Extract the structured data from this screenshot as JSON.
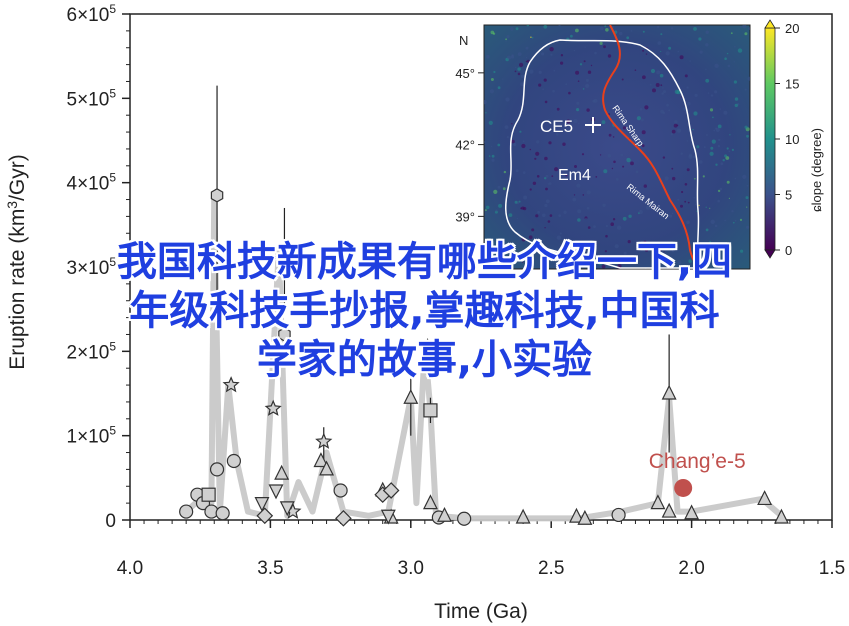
{
  "chart_data": {
    "type": "scatter",
    "xlabel": "Time (Ga)",
    "ylabel": "Eruption rate (km3/Gyr)",
    "xlim": [
      4.0,
      1.5
    ],
    "ylim": [
      0,
      600000
    ],
    "x_ticks": [
      "4.0",
      "3.5",
      "3.0",
      "2.5",
      "2.0",
      "1.5"
    ],
    "y_ticks": [
      "0",
      "1×10⁵",
      "2×10⁵",
      "3×10⁵",
      "4×10⁵",
      "5×10⁵",
      "6×10⁵"
    ],
    "y_tick_mantissa": "×10",
    "y_tick_exponent": "5",
    "ylabel_parts": {
      "main": "Eruption rate (km",
      "sup": "3",
      "end": "/Gyr)"
    },
    "trend": {
      "color": "#c8c8c8",
      "points": [
        [
          3.8,
          10000
        ],
        [
          3.75,
          25000
        ],
        [
          3.71,
          20000
        ],
        [
          3.7,
          385000
        ],
        [
          3.68,
          10000
        ],
        [
          3.65,
          160000
        ],
        [
          3.62,
          70000
        ],
        [
          3.58,
          10000
        ],
        [
          3.52,
          5000
        ],
        [
          3.47,
          320000
        ],
        [
          3.44,
          5000
        ],
        [
          3.4,
          45000
        ],
        [
          3.35,
          10000
        ],
        [
          3.3,
          80000
        ],
        [
          3.24,
          10000
        ],
        [
          3.15,
          5000
        ],
        [
          3.08,
          10000
        ],
        [
          3.0,
          145000
        ],
        [
          2.98,
          20000
        ],
        [
          2.95,
          205000
        ],
        [
          2.93,
          130000
        ],
        [
          2.91,
          5000
        ],
        [
          2.8,
          2000
        ],
        [
          2.6,
          2000
        ],
        [
          2.4,
          2000
        ],
        [
          2.25,
          10000
        ],
        [
          2.12,
          20000
        ],
        [
          2.08,
          145000
        ],
        [
          2.05,
          10000
        ],
        [
          2.0,
          10000
        ],
        [
          1.75,
          25000
        ],
        [
          1.68,
          5000
        ]
      ]
    },
    "points": [
      {
        "marker": "circle",
        "x": 3.8,
        "y": 10000
      },
      {
        "marker": "circle",
        "x": 3.76,
        "y": 30000
      },
      {
        "marker": "circle",
        "x": 3.74,
        "y": 20000
      },
      {
        "marker": "circle",
        "x": 3.71,
        "y": 10000
      },
      {
        "marker": "circle",
        "x": 3.69,
        "y": 60000
      },
      {
        "marker": "circle",
        "x": 3.67,
        "y": 8000
      },
      {
        "marker": "circle",
        "x": 3.63,
        "y": 70000
      },
      {
        "marker": "circle",
        "x": 3.25,
        "y": 35000
      },
      {
        "marker": "circle",
        "x": 2.9,
        "y": 3000
      },
      {
        "marker": "circle",
        "x": 2.81,
        "y": 1500
      },
      {
        "marker": "circle",
        "x": 2.26,
        "y": 6000
      },
      {
        "marker": "hexagon",
        "x": 3.69,
        "y": 385000,
        "err": [
          255000,
          515000
        ]
      },
      {
        "marker": "hexagon",
        "x": 3.45,
        "y": 220000
      },
      {
        "marker": "star",
        "x": 3.45,
        "y": 320000,
        "err": [
          250000,
          370000
        ]
      },
      {
        "marker": "star",
        "x": 3.64,
        "y": 160000
      },
      {
        "marker": "star",
        "x": 3.49,
        "y": 132000
      },
      {
        "marker": "star",
        "x": 3.31,
        "y": 93000,
        "err": [
          70000,
          110000
        ]
      },
      {
        "marker": "star",
        "x": 3.42,
        "y": 10000
      },
      {
        "marker": "star",
        "x": 2.94,
        "y": 205000
      },
      {
        "marker": "triangle-up",
        "x": 3.46,
        "y": 55000
      },
      {
        "marker": "triangle-up",
        "x": 3.32,
        "y": 70000
      },
      {
        "marker": "triangle-up",
        "x": 3.3,
        "y": 60000
      },
      {
        "marker": "triangle-up",
        "x": 3.1,
        "y": 35000
      },
      {
        "marker": "triangle-up",
        "x": 3.07,
        "y": 3000
      },
      {
        "marker": "triangle-up",
        "x": 3.0,
        "y": 145000,
        "err": [
          100000,
          180000
        ]
      },
      {
        "marker": "triangle-up",
        "x": 2.93,
        "y": 20000
      },
      {
        "marker": "triangle-up",
        "x": 2.88,
        "y": 5000
      },
      {
        "marker": "triangle-up",
        "x": 2.6,
        "y": 3000
      },
      {
        "marker": "triangle-up",
        "x": 2.41,
        "y": 4000
      },
      {
        "marker": "triangle-up",
        "x": 2.38,
        "y": 1500
      },
      {
        "marker": "triangle-up",
        "x": 2.12,
        "y": 20000
      },
      {
        "marker": "triangle-up",
        "x": 2.08,
        "y": 150000,
        "err": [
          80000,
          220000
        ]
      },
      {
        "marker": "triangle-up",
        "x": 2.08,
        "y": 10000
      },
      {
        "marker": "triangle-up",
        "x": 2.0,
        "y": 8000
      },
      {
        "marker": "triangle-up",
        "x": 1.74,
        "y": 25000
      },
      {
        "marker": "triangle-up",
        "x": 1.68,
        "y": 3000
      },
      {
        "marker": "triangle-down",
        "x": 3.53,
        "y": 20000
      },
      {
        "marker": "triangle-down",
        "x": 3.48,
        "y": 35000
      },
      {
        "marker": "triangle-down",
        "x": 3.44,
        "y": 15000
      },
      {
        "marker": "triangle-down",
        "x": 3.08,
        "y": 5000
      },
      {
        "marker": "diamond",
        "x": 3.52,
        "y": 5000
      },
      {
        "marker": "diamond",
        "x": 3.24,
        "y": 2000
      },
      {
        "marker": "diamond",
        "x": 3.1,
        "y": 30000
      },
      {
        "marker": "diamond",
        "x": 3.07,
        "y": 35000
      },
      {
        "marker": "square",
        "x": 3.72,
        "y": 30000
      },
      {
        "marker": "square",
        "x": 2.93,
        "y": 130000,
        "err": [
          115000,
          145000
        ]
      }
    ],
    "highlight": {
      "label": "Chang’e-5",
      "x": 2.03,
      "y": 38000,
      "color": "#c0504d"
    }
  },
  "inset": {
    "north_label": "N",
    "lat_ticks": [
      "45°",
      "42°",
      "39°"
    ],
    "lat_values": [
      45,
      42,
      39
    ],
    "lat_range": [
      47,
      36.8
    ],
    "region_labels": {
      "ce5": "CE5",
      "em4": "Em4",
      "rima_sharp": "Rima Sharp",
      "rima_mairan": "Rima Mairan"
    },
    "colorbar": {
      "label": "Slope (degree)",
      "display_label": "ɕlope (degree)",
      "ticks": [
        "20",
        "15",
        "10",
        "5",
        "0"
      ],
      "values": [
        20,
        15,
        10,
        5,
        0
      ],
      "range": [
        0,
        20
      ],
      "colors": [
        "#440154",
        "#3b528b",
        "#21918c",
        "#5ec962",
        "#fde725"
      ]
    }
  },
  "overlay": {
    "lines": [
      "我国科技新成果有哪些介绍一下,四",
      "年级科技手抄报,掌趣科技,中国科",
      "学家的故事,小实验"
    ],
    "color": "#1f3fe0"
  }
}
